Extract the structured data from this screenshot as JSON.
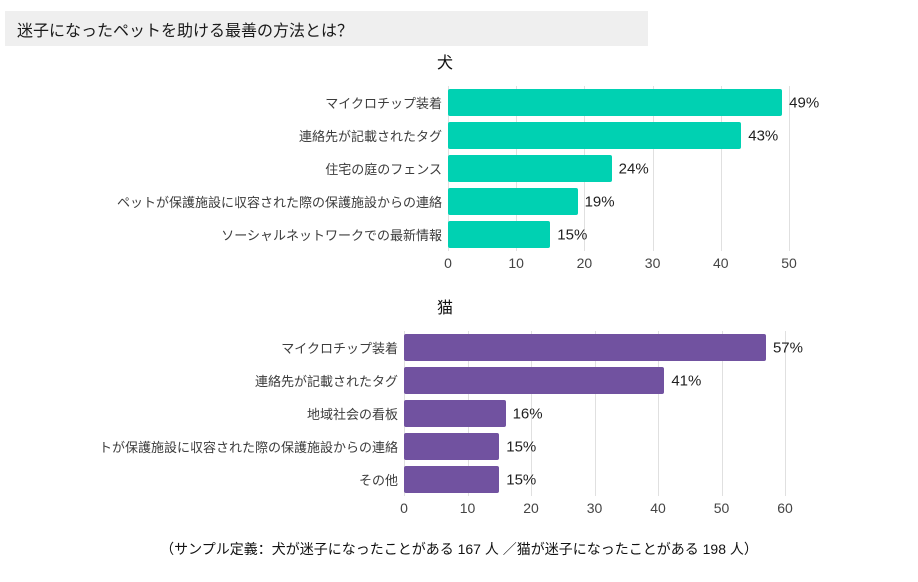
{
  "page": {
    "title": "迷子になったペットを助ける最善の方法とは？",
    "footnote": "（サンプル定義：犬が迷子になったことがある 167 人 ／猫が迷子になったことがある 198 人）"
  },
  "colors": {
    "header_background": "#efefef",
    "dog_bar": "#00d1b2",
    "cat_bar": "#7152a0",
    "gridline": "#e0e0e0"
  },
  "chart_data": [
    {
      "type": "bar",
      "orientation": "horizontal",
      "title": "犬",
      "categories": [
        "マイクロチップ装着",
        "連絡先が記載されたタグ",
        "住宅の庭のフェンス",
        "ペットが保護施設に収容された際の保護施設からの連絡",
        "ソーシャルネットワークでの最新情報"
      ],
      "values": [
        49,
        43,
        24,
        19,
        15
      ],
      "value_labels": [
        "49%",
        "43%",
        "24%",
        "19%",
        "15%"
      ],
      "xlim": [
        0,
        50
      ],
      "xticks": [
        0,
        10,
        20,
        30,
        40,
        50
      ],
      "bar_color": "#00d1b2",
      "grid": true,
      "legend": false
    },
    {
      "type": "bar",
      "orientation": "horizontal",
      "title": "猫",
      "categories": [
        "マイクロチップ装着",
        "連絡先が記載されたタグ",
        "地域社会の看板",
        "トが保護施設に収容された際の保護施設からの連絡",
        "その他"
      ],
      "values": [
        57,
        41,
        16,
        15,
        15
      ],
      "value_labels": [
        "57%",
        "41%",
        "16%",
        "15%",
        "15%"
      ],
      "xlim": [
        0,
        60
      ],
      "xticks": [
        0,
        10,
        20,
        30,
        40,
        50,
        60
      ],
      "bar_color": "#7152a0",
      "grid": true,
      "legend": false
    }
  ]
}
